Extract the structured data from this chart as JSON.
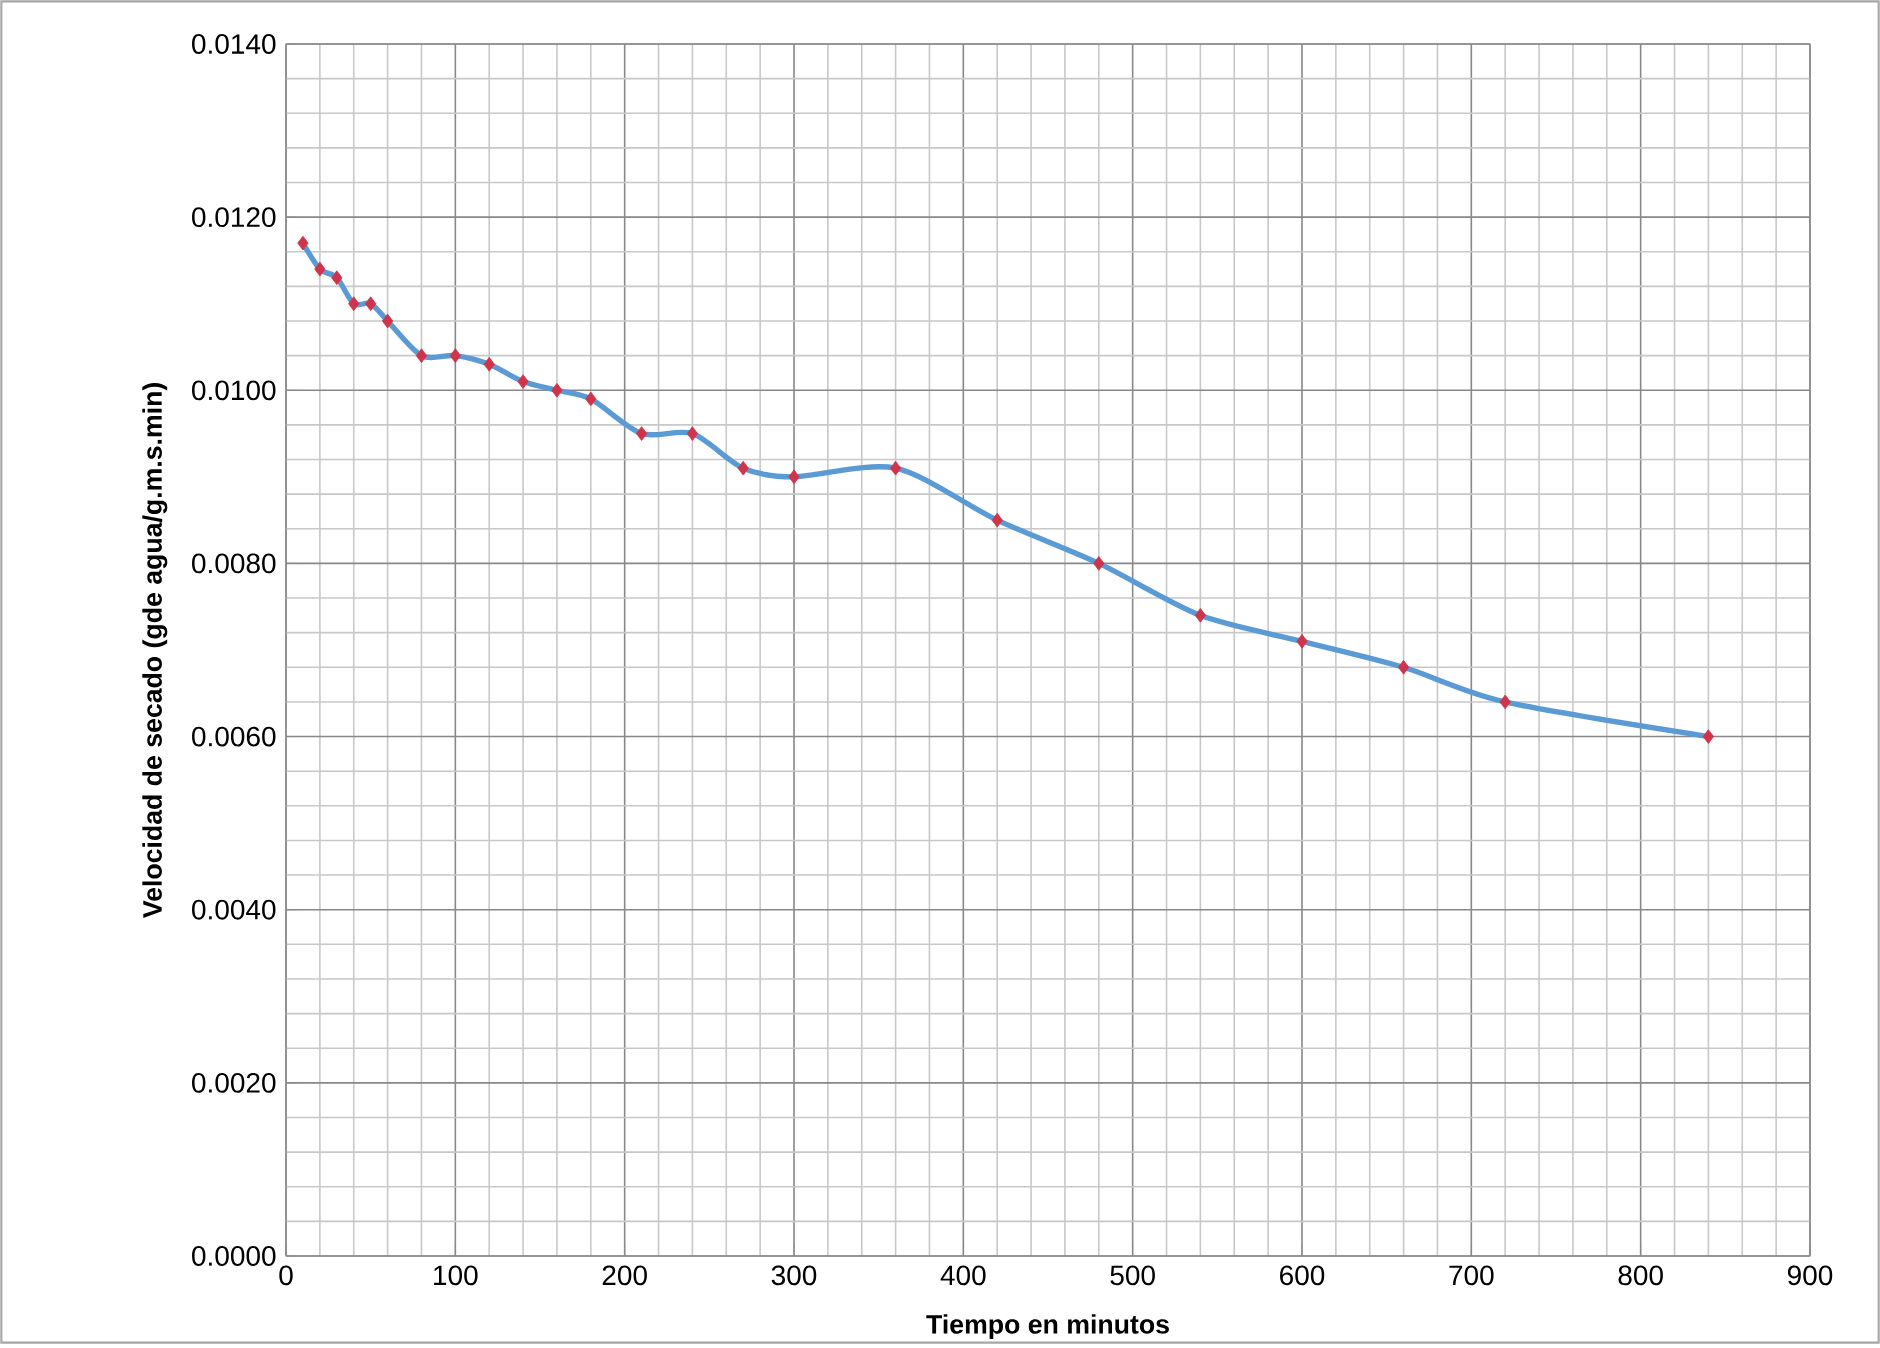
{
  "chart_data": {
    "type": "line",
    "xlabel": "Tiempo en minutos",
    "ylabel": "Velocidad de secado (gde agua/g.m.s.min)",
    "x": [
      10,
      20,
      30,
      40,
      50,
      60,
      80,
      100,
      120,
      140,
      160,
      180,
      210,
      240,
      270,
      300,
      360,
      420,
      480,
      540,
      600,
      660,
      720,
      840
    ],
    "series": [
      {
        "color": "#5b9bd5",
        "values": [
          0.0117,
          0.0114,
          0.0113,
          0.011,
          0.011,
          0.0108,
          0.0104,
          0.0104,
          0.0103,
          0.0101,
          0.01,
          0.0099,
          0.0095,
          0.0095,
          0.0091,
          0.009,
          0.0091,
          0.0085,
          0.008,
          0.0074,
          0.0071,
          0.0068,
          0.0064,
          0.006
        ]
      }
    ],
    "xlim": [
      0,
      900
    ],
    "xticks": [
      0,
      100,
      200,
      300,
      400,
      500,
      600,
      700,
      800,
      900
    ],
    "ylim": [
      0,
      0.014
    ],
    "yticks": [
      {
        "value": 0,
        "label": "0.0000"
      },
      {
        "value": 0.002,
        "label": "0.0020"
      },
      {
        "value": 0.004,
        "label": "0.0040"
      },
      {
        "value": 0.006,
        "label": "0.0060"
      },
      {
        "value": 0.008,
        "label": "0.0080"
      },
      {
        "value": 0.01,
        "label": "0.0100"
      },
      {
        "value": 0.012,
        "label": "0.0120"
      },
      {
        "value": 0.014,
        "label": "0.0140"
      }
    ],
    "grid": true,
    "marker": "diamond",
    "line_style": "solid"
  }
}
